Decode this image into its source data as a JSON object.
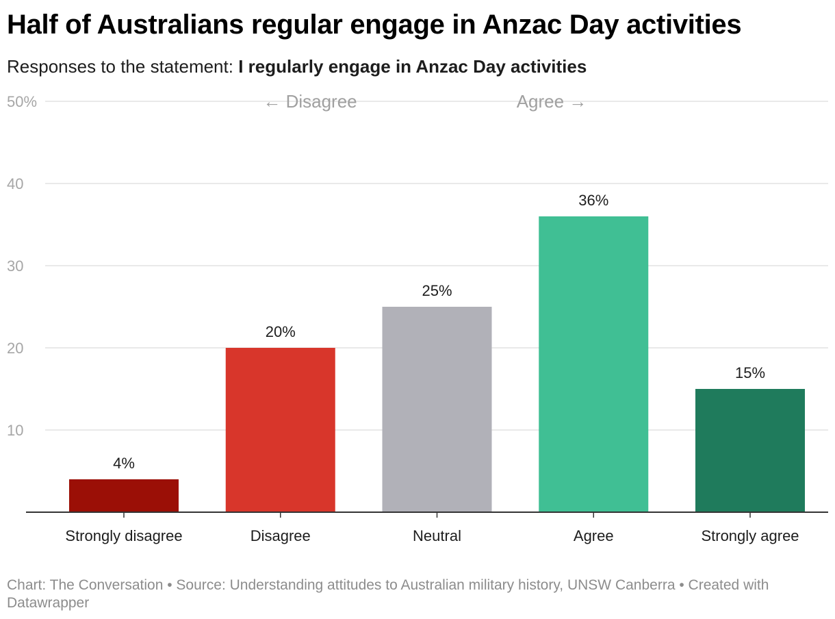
{
  "header": {
    "title": "Half of Australians regular engage in Anzac Day activities",
    "subtitle_prefix": "Responses to the statement: ",
    "subtitle_statement": "I regularly engage in Anzac Day activities"
  },
  "footer": {
    "text": "Chart: The Conversation • Source: Understanding attitudes to Australian military history, UNSW Canberra • Created with Datawrapper"
  },
  "chart_data": {
    "type": "bar",
    "title": "Half of Australians regular engage in Anzac Day activities",
    "categories": [
      "Strongly disagree",
      "Disagree",
      "Neutral",
      "Agree",
      "Strongly agree"
    ],
    "values": [
      4,
      20,
      25,
      36,
      15
    ],
    "value_labels": [
      "4%",
      "20%",
      "25%",
      "36%",
      "15%"
    ],
    "colors": [
      "#9b0f06",
      "#d8362b",
      "#b1b1b8",
      "#40bf94",
      "#1f7b5c"
    ],
    "ylim": [
      0,
      50
    ],
    "yticks": [
      10,
      20,
      30,
      40,
      50
    ],
    "ytick_labels": [
      "10",
      "20",
      "30",
      "40",
      "50%"
    ],
    "grid": true,
    "xlabel": "",
    "ylabel": "",
    "annotations": [
      "← Disagree",
      "Agree →"
    ]
  }
}
